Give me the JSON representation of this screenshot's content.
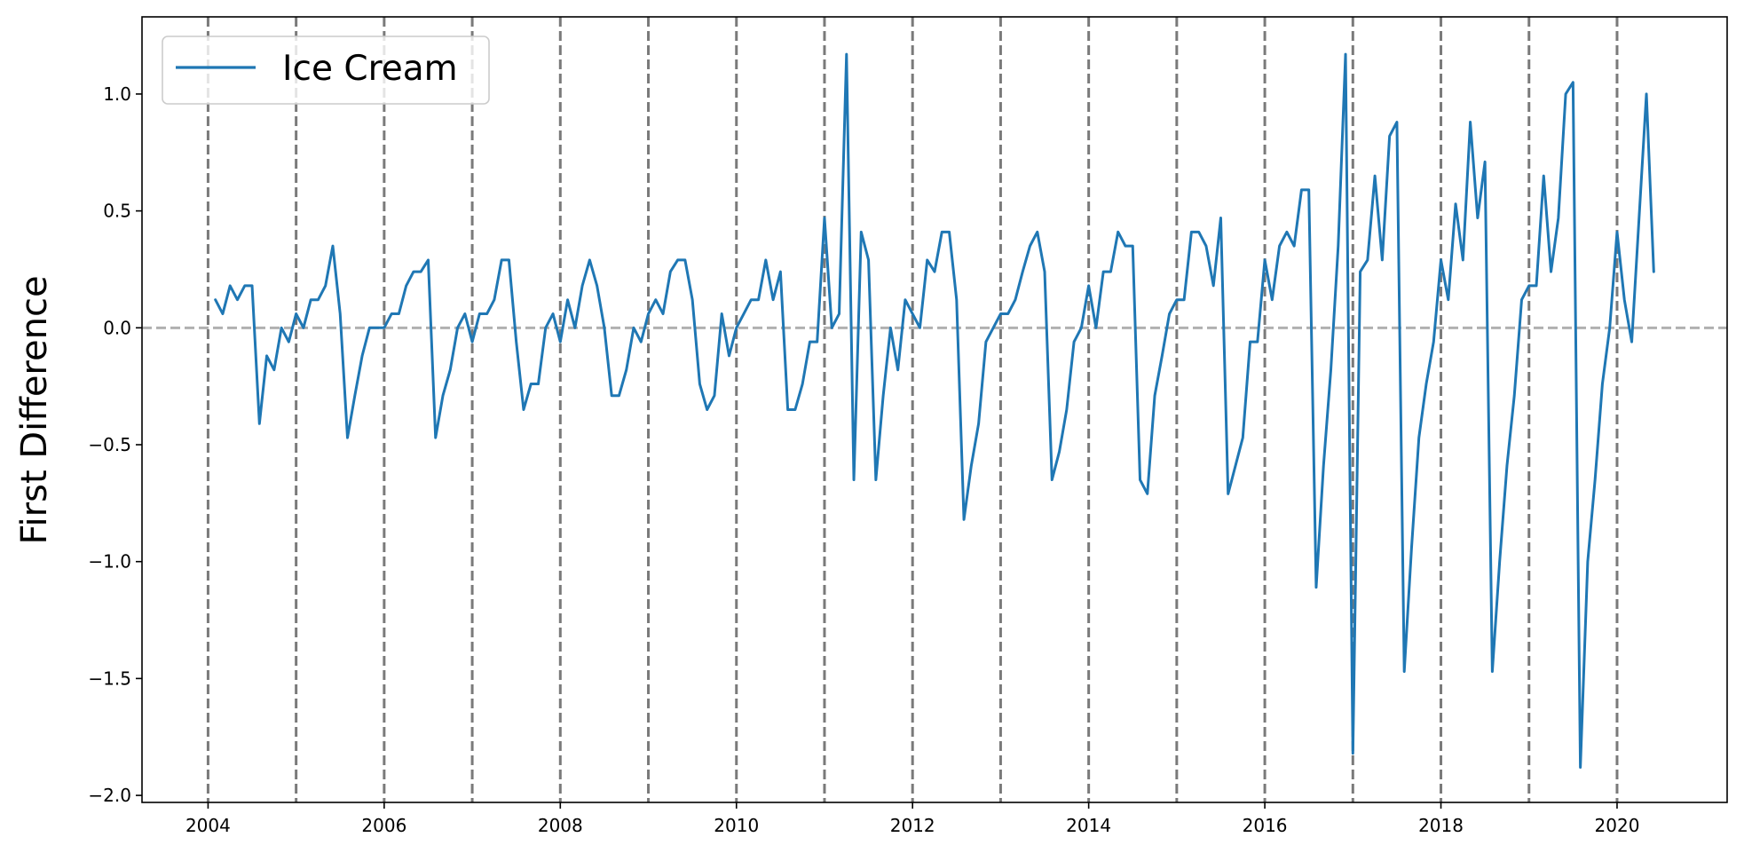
{
  "chart_data": {
    "type": "line",
    "title": "",
    "xlabel": "",
    "ylabel": "First Difference",
    "xlim": [
      "2003-04-01",
      "2021-04-01"
    ],
    "ylim": [
      -2.03,
      1.33
    ],
    "x_ticks": [
      "2004",
      "2006",
      "2008",
      "2010",
      "2012",
      "2014",
      "2016",
      "2018",
      "2020"
    ],
    "y_ticks": [
      "1.0",
      "0.5",
      "0.0",
      "−0.5",
      "−1.0",
      "−1.5",
      "−2.0"
    ],
    "y_tick_values": [
      1.0,
      0.5,
      0.0,
      -0.5,
      -1.0,
      -1.5,
      -2.0
    ],
    "vertical_lines": [
      "2004-01",
      "2005-01",
      "2006-01",
      "2007-01",
      "2008-01",
      "2009-01",
      "2010-01",
      "2011-01",
      "2012-01",
      "2013-01",
      "2014-01",
      "2015-01",
      "2016-01",
      "2017-01",
      "2018-01",
      "2019-01",
      "2020-01"
    ],
    "reference_line_y": 0.0,
    "legend": {
      "position": "top-left"
    },
    "colors": {
      "series": "#1f77b4",
      "vlines": "#7a7a7a",
      "zero_line": "#b0b0b0"
    },
    "series": [
      {
        "name": "Ice Cream",
        "x": [
          "2004-02",
          "2004-03",
          "2004-04",
          "2004-05",
          "2004-06",
          "2004-07",
          "2004-08",
          "2004-09",
          "2004-10",
          "2004-11",
          "2004-12",
          "2005-01",
          "2005-02",
          "2005-03",
          "2005-04",
          "2005-05",
          "2005-06",
          "2005-07",
          "2005-08",
          "2005-09",
          "2005-10",
          "2005-11",
          "2005-12",
          "2006-01",
          "2006-02",
          "2006-03",
          "2006-04",
          "2006-05",
          "2006-06",
          "2006-07",
          "2006-08",
          "2006-09",
          "2006-10",
          "2006-11",
          "2006-12",
          "2007-01",
          "2007-02",
          "2007-03",
          "2007-04",
          "2007-05",
          "2007-06",
          "2007-07",
          "2007-08",
          "2007-09",
          "2007-10",
          "2007-11",
          "2007-12",
          "2008-01",
          "2008-02",
          "2008-03",
          "2008-04",
          "2008-05",
          "2008-06",
          "2008-07",
          "2008-08",
          "2008-09",
          "2008-10",
          "2008-11",
          "2008-12",
          "2009-01",
          "2009-02",
          "2009-03",
          "2009-04",
          "2009-05",
          "2009-06",
          "2009-07",
          "2009-08",
          "2009-09",
          "2009-10",
          "2009-11",
          "2009-12",
          "2010-01",
          "2010-02",
          "2010-03",
          "2010-04",
          "2010-05",
          "2010-06",
          "2010-07",
          "2010-08",
          "2010-09",
          "2010-10",
          "2010-11",
          "2010-12",
          "2011-01",
          "2011-02",
          "2011-03",
          "2011-04",
          "2011-05",
          "2011-06",
          "2011-07",
          "2011-08",
          "2011-09",
          "2011-10",
          "2011-11",
          "2011-12",
          "2012-01",
          "2012-02",
          "2012-03",
          "2012-04",
          "2012-05",
          "2012-06",
          "2012-07",
          "2012-08",
          "2012-09",
          "2012-10",
          "2012-11",
          "2012-12",
          "2013-01",
          "2013-02",
          "2013-03",
          "2013-04",
          "2013-05",
          "2013-06",
          "2013-07",
          "2013-08",
          "2013-09",
          "2013-10",
          "2013-11",
          "2013-12",
          "2014-01",
          "2014-02",
          "2014-03",
          "2014-04",
          "2014-05",
          "2014-06",
          "2014-07",
          "2014-08",
          "2014-09",
          "2014-10",
          "2014-11",
          "2014-12",
          "2015-01",
          "2015-02",
          "2015-03",
          "2015-04",
          "2015-05",
          "2015-06",
          "2015-07",
          "2015-08",
          "2015-09",
          "2015-10",
          "2015-11",
          "2015-12",
          "2016-01",
          "2016-02",
          "2016-03",
          "2016-04",
          "2016-05",
          "2016-06",
          "2016-07",
          "2016-08",
          "2016-09",
          "2016-10",
          "2016-11",
          "2016-12",
          "2017-01",
          "2017-02",
          "2017-03",
          "2017-04",
          "2017-05",
          "2017-06",
          "2017-07",
          "2017-08",
          "2017-09",
          "2017-10",
          "2017-11",
          "2017-12",
          "2018-01",
          "2018-02",
          "2018-03",
          "2018-04",
          "2018-05",
          "2018-06",
          "2018-07",
          "2018-08",
          "2018-09",
          "2018-10",
          "2018-11",
          "2018-12",
          "2019-01",
          "2019-02",
          "2019-03",
          "2019-04",
          "2019-05",
          "2019-06",
          "2019-07",
          "2019-08",
          "2019-09",
          "2019-10",
          "2019-11",
          "2019-12",
          "2020-01",
          "2020-02",
          "2020-03",
          "2020-04",
          "2020-05",
          "2020-06"
        ],
        "values": [
          0.12,
          0.06,
          0.18,
          0.12,
          0.18,
          0.18,
          -0.41,
          -0.12,
          -0.18,
          0.0,
          -0.06,
          0.06,
          0.0,
          0.12,
          0.12,
          0.18,
          0.35,
          0.06,
          -0.47,
          -0.29,
          -0.12,
          0.0,
          0.0,
          0.0,
          0.06,
          0.06,
          0.18,
          0.24,
          0.24,
          0.29,
          -0.47,
          -0.29,
          -0.18,
          0.0,
          0.06,
          -0.06,
          0.06,
          0.06,
          0.12,
          0.29,
          0.29,
          -0.06,
          -0.35,
          -0.24,
          -0.24,
          0.0,
          0.06,
          -0.06,
          0.12,
          0.0,
          0.18,
          0.29,
          0.18,
          0.0,
          -0.29,
          -0.29,
          -0.18,
          0.0,
          -0.06,
          0.06,
          0.12,
          0.06,
          0.24,
          0.29,
          0.29,
          0.12,
          -0.24,
          -0.35,
          -0.29,
          0.06,
          -0.12,
          0.0,
          0.06,
          0.12,
          0.12,
          0.29,
          0.12,
          0.24,
          -0.35,
          -0.35,
          -0.24,
          -0.06,
          -0.06,
          0.47,
          0.0,
          0.06,
          1.17,
          -0.65,
          0.41,
          0.29,
          -0.65,
          -0.29,
          0.0,
          -0.18,
          0.12,
          0.06,
          0.0,
          0.29,
          0.24,
          0.41,
          0.41,
          0.12,
          -0.82,
          -0.59,
          -0.41,
          -0.06,
          0.0,
          0.06,
          0.06,
          0.12,
          0.24,
          0.35,
          0.41,
          0.24,
          -0.65,
          -0.53,
          -0.35,
          -0.06,
          0.0,
          0.18,
          0.0,
          0.24,
          0.24,
          0.41,
          0.35,
          0.35,
          -0.65,
          -0.71,
          -0.29,
          -0.12,
          0.06,
          0.12,
          0.12,
          0.41,
          0.41,
          0.35,
          0.18,
          0.47,
          -0.71,
          -0.59,
          -0.47,
          -0.06,
          -0.06,
          0.29,
          0.12,
          0.35,
          0.41,
          0.35,
          0.59,
          0.59,
          -1.11,
          -0.59,
          -0.18,
          0.35,
          1.17,
          -1.82,
          0.24,
          0.29,
          0.65,
          0.29,
          0.82,
          0.88,
          -1.47,
          -0.94,
          -0.47,
          -0.24,
          -0.06,
          0.29,
          0.12,
          0.53,
          0.29,
          0.88,
          0.47,
          0.71,
          -1.47,
          -1.0,
          -0.59,
          -0.29,
          0.12,
          0.18,
          0.18,
          0.65,
          0.24,
          0.47,
          1.0,
          1.05,
          -1.88,
          -1.0,
          -0.65,
          -0.24,
          0.0,
          0.41,
          0.12,
          -0.06,
          0.47,
          1.0,
          0.24
        ]
      }
    ]
  }
}
